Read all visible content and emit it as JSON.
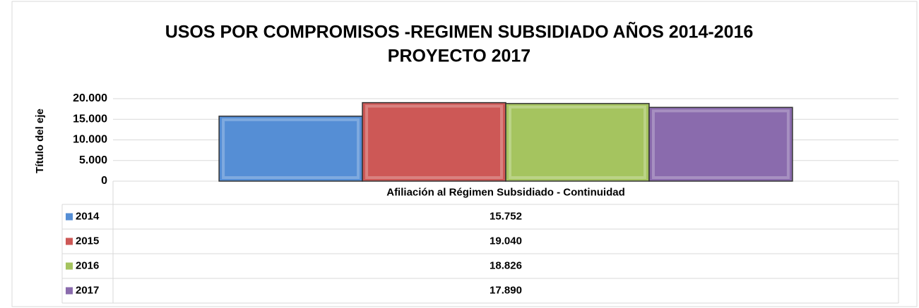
{
  "chart_data": {
    "type": "bar",
    "title": [
      "USOS POR COMPROMISOS -REGIMEN SUBSIDIADO AÑOS 2014-2016",
      "PROYECTO 2017"
    ],
    "y_label": "Título del eje",
    "categories": [
      "Afiliación al Régimen Subsidiado - Continuidad"
    ],
    "series": [
      {
        "name": "2014",
        "color": "#558ed5",
        "values": [
          15752
        ],
        "value_labels": [
          "15.752"
        ]
      },
      {
        "name": "2015",
        "color": "#cd5856",
        "values": [
          19040
        ],
        "value_labels": [
          "19.040"
        ]
      },
      {
        "name": "2016",
        "color": "#a5c45f",
        "values": [
          18826
        ],
        "value_labels": [
          "18.826"
        ]
      },
      {
        "name": "2017",
        "color": "#8a6bad",
        "values": [
          17890
        ],
        "value_labels": [
          "17.890"
        ]
      }
    ],
    "ylim": [
      0,
      20000
    ],
    "yticks": [
      0,
      {
        "value": 5000,
        "label": "5.000"
      },
      {
        "value": 10000,
        "label": "10.000"
      },
      {
        "value": 15000,
        "label": "15.000"
      },
      {
        "value": 20000,
        "label": "20.000"
      }
    ],
    "grid": true
  }
}
